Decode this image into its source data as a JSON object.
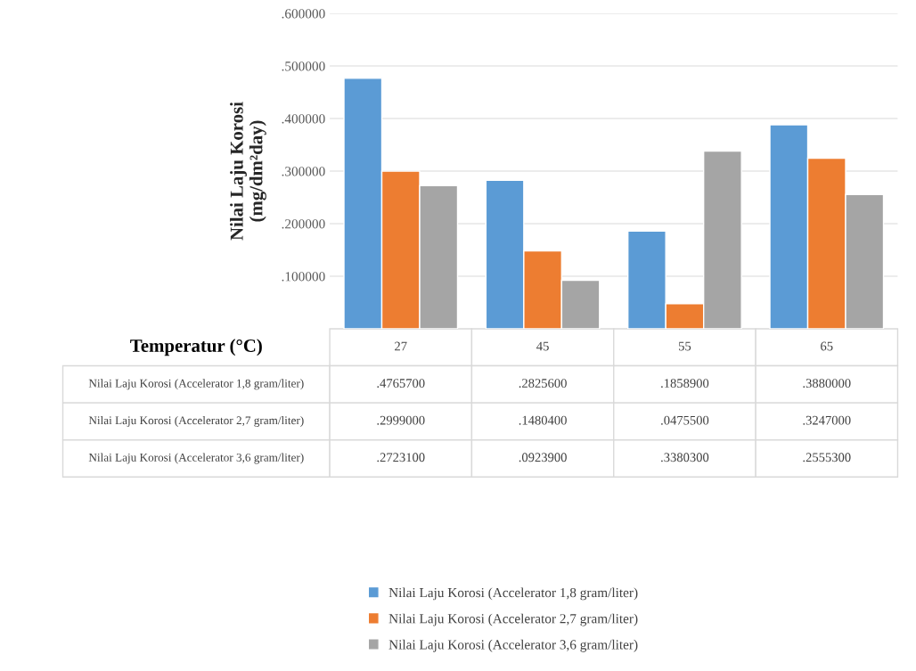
{
  "chart_data": {
    "type": "bar",
    "xlabel": "Temperatur (°C)",
    "ylabel": "Nilai Laju Korosi\n(mg/dm²day)",
    "categories": [
      "27",
      "45",
      "55",
      "65"
    ],
    "series": [
      {
        "name": "Nilai Laju Korosi (Accelerator 1,8 gram/liter)",
        "color": "#5b9bd5",
        "values": [
          0.47657,
          0.28256,
          0.18589,
          0.388
        ],
        "value_labels": [
          ".4765700",
          ".2825600",
          ".1858900",
          ".3880000"
        ]
      },
      {
        "name": "Nilai Laju Korosi (Accelerator 2,7 gram/liter)",
        "color": "#ed7d31",
        "values": [
          0.2999,
          0.14804,
          0.04755,
          0.3247
        ],
        "value_labels": [
          ".2999000",
          ".1480400",
          ".0475500",
          ".3247000"
        ]
      },
      {
        "name": "Nilai Laju Korosi (Accelerator 3,6 gram/liter)",
        "color": "#a5a5a5",
        "values": [
          0.27231,
          0.09239,
          0.33803,
          0.25553
        ],
        "value_labels": [
          ".2723100",
          ".0923900",
          ".3380300",
          ".2555300"
        ]
      }
    ],
    "ylim": [
      0,
      0.6
    ],
    "yticks": [
      {
        "value": 0.1,
        "label": ".100000"
      },
      {
        "value": 0.2,
        "label": ".200000"
      },
      {
        "value": 0.3,
        "label": ".300000"
      },
      {
        "value": 0.4,
        "label": ".400000"
      },
      {
        "value": 0.5,
        "label": ".500000"
      },
      {
        "value": 0.6,
        "label": ".600000"
      }
    ],
    "grid": "y",
    "legend": "bottom",
    "tick_labels": "y"
  }
}
